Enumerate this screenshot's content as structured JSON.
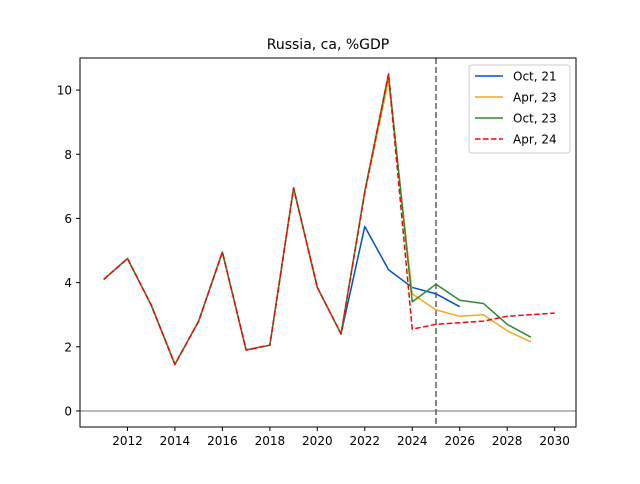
{
  "chart_data": {
    "type": "line",
    "title": "Russia, ca, %GDP",
    "xlabel": "",
    "ylabel": "",
    "xlim": [
      2010.0,
      2030.9
    ],
    "ylim": [
      -0.5,
      11.0
    ],
    "xticks": [
      2012,
      2014,
      2016,
      2018,
      2020,
      2022,
      2024,
      2026,
      2028,
      2030
    ],
    "yticks": [
      0,
      2,
      4,
      6,
      8,
      10
    ],
    "legend_position": "top-right",
    "reference_lines": [
      {
        "axis": "y",
        "value": 0,
        "color": "#a0a0a0",
        "style": "solid"
      },
      {
        "axis": "x",
        "value": 2025,
        "color": "#606060",
        "style": "dashed"
      }
    ],
    "series": [
      {
        "name": "Oct, 21",
        "color": "#0050c8",
        "style": "solid",
        "x": [
          2011,
          2012,
          2013,
          2014,
          2015,
          2016,
          2017,
          2018,
          2019,
          2020,
          2021,
          2022,
          2023,
          2024,
          2025,
          2026
        ],
        "y": [
          4.1,
          4.75,
          3.3,
          1.45,
          2.8,
          4.95,
          1.9,
          2.05,
          6.95,
          3.85,
          2.4,
          5.75,
          4.4,
          3.85,
          3.65,
          3.25
        ]
      },
      {
        "name": "Apr, 23",
        "color": "#f5a623",
        "style": "solid",
        "x": [
          2011,
          2012,
          2013,
          2014,
          2015,
          2016,
          2017,
          2018,
          2019,
          2020,
          2021,
          2022,
          2023,
          2024,
          2025,
          2026,
          2027,
          2028,
          2029
        ],
        "y": [
          4.1,
          4.75,
          3.3,
          1.45,
          2.8,
          4.95,
          1.9,
          2.05,
          6.95,
          3.85,
          2.4,
          6.8,
          10.3,
          3.65,
          3.15,
          2.95,
          3.0,
          2.5,
          2.15
        ]
      },
      {
        "name": "Oct, 23",
        "color": "#2e8b2e",
        "style": "solid",
        "x": [
          2011,
          2012,
          2013,
          2014,
          2015,
          2016,
          2017,
          2018,
          2019,
          2020,
          2021,
          2022,
          2023,
          2024,
          2025,
          2026,
          2027,
          2028,
          2029
        ],
        "y": [
          4.1,
          4.75,
          3.3,
          1.45,
          2.8,
          4.95,
          1.9,
          2.05,
          6.95,
          3.85,
          2.4,
          6.85,
          10.5,
          3.4,
          3.95,
          3.45,
          3.35,
          2.7,
          2.3
        ]
      },
      {
        "name": "Apr, 24",
        "color": "#ff0000",
        "style": "dashed",
        "x": [
          2011,
          2012,
          2013,
          2014,
          2015,
          2016,
          2017,
          2018,
          2019,
          2020,
          2021,
          2022,
          2023,
          2024,
          2025,
          2026,
          2027,
          2028,
          2029,
          2030
        ],
        "y": [
          4.1,
          4.75,
          3.3,
          1.45,
          2.8,
          4.95,
          1.9,
          2.05,
          6.95,
          3.85,
          2.4,
          6.8,
          10.5,
          2.55,
          2.7,
          2.75,
          2.8,
          2.95,
          3.0,
          3.05
        ]
      }
    ]
  }
}
